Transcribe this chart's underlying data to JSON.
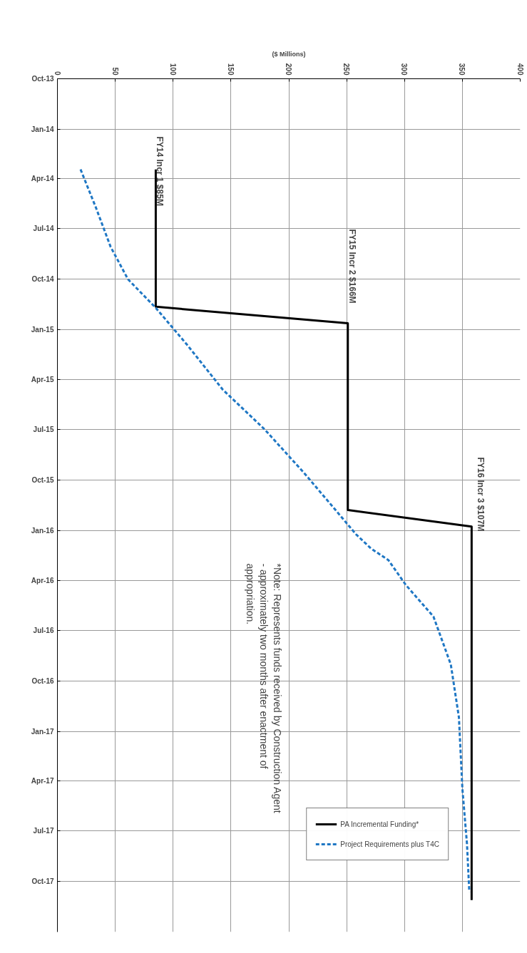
{
  "chart_data": {
    "type": "line",
    "orientation": "horizontal",
    "ylabel": "($ Millions)",
    "ylim": [
      "2018-01-01",
      "2013-10-01"
    ],
    "yticks": [
      {
        "value": "2013-10-01",
        "label": "Oct-13"
      },
      {
        "value": "2014-01-01",
        "label": "Jan-14"
      },
      {
        "value": "2014-04-01",
        "label": "Apr-14"
      },
      {
        "value": "2014-07-01",
        "label": "Jul-14"
      },
      {
        "value": "2014-10-01",
        "label": "Oct-14"
      },
      {
        "value": "2015-01-01",
        "label": "Jan-15"
      },
      {
        "value": "2015-04-01",
        "label": "Apr-15"
      },
      {
        "value": "2015-07-01",
        "label": "Jul-15"
      },
      {
        "value": "2015-10-01",
        "label": "Oct-15"
      },
      {
        "value": "2016-01-01",
        "label": "Jan-16"
      },
      {
        "value": "2016-04-01",
        "label": "Apr-16"
      },
      {
        "value": "2016-07-01",
        "label": "Jul-16"
      },
      {
        "value": "2016-10-01",
        "label": "Oct-16"
      },
      {
        "value": "2017-01-01",
        "label": "Jan-17"
      },
      {
        "value": "2017-04-01",
        "label": "Apr-17"
      },
      {
        "value": "2017-07-01",
        "label": "Jul-17"
      },
      {
        "value": "2017-10-01",
        "label": "Oct-17"
      }
    ],
    "xlim": [
      0,
      400
    ],
    "xticks": [
      0,
      50,
      100,
      150,
      200,
      250,
      300,
      350,
      400
    ],
    "grid": true,
    "legend": "bottom right",
    "marker": "none",
    "series": [
      {
        "name": "PA Incremental Funding*",
        "color": "#000000",
        "line_style": "solid",
        "x": [
          "2014-03-15",
          "2014-11-20",
          "2014-12-20",
          "2015-11-25",
          "2015-12-25",
          "2017-11-04"
        ],
        "values": [
          85,
          85,
          251,
          251,
          358,
          358
        ]
      },
      {
        "name": "Project Requirements plus T4C",
        "color": "#1f77c4",
        "line_style": "dashed",
        "x": [
          "2014-03-15",
          "2014-05-22",
          "2014-08-03",
          "2014-10-01",
          "2014-11-22",
          "2015-01-28",
          "2015-04-20",
          "2015-07-01",
          "2015-09-18",
          "2015-11-24",
          "2016-01-08",
          "2016-02-03",
          "2016-02-24",
          "2016-04-09",
          "2016-06-06",
          "2016-09-01",
          "2016-12-06",
          "2017-04-15",
          "2017-07-25",
          "2017-10-20"
        ],
        "values": [
          20,
          33,
          46,
          61,
          85,
          112,
          143,
          179,
          213,
          240,
          258,
          271,
          286,
          301,
          325,
          340,
          347,
          350,
          354,
          356
        ]
      }
    ],
    "annotations": [
      "FY14 Incr 1 $85M",
      "FY15 Incr 2 $166M",
      "FY16 Incr 3 $107M",
      "*Note:  Represents funds received by Construction Agent - approximately two months after enactment of appropriation."
    ]
  }
}
